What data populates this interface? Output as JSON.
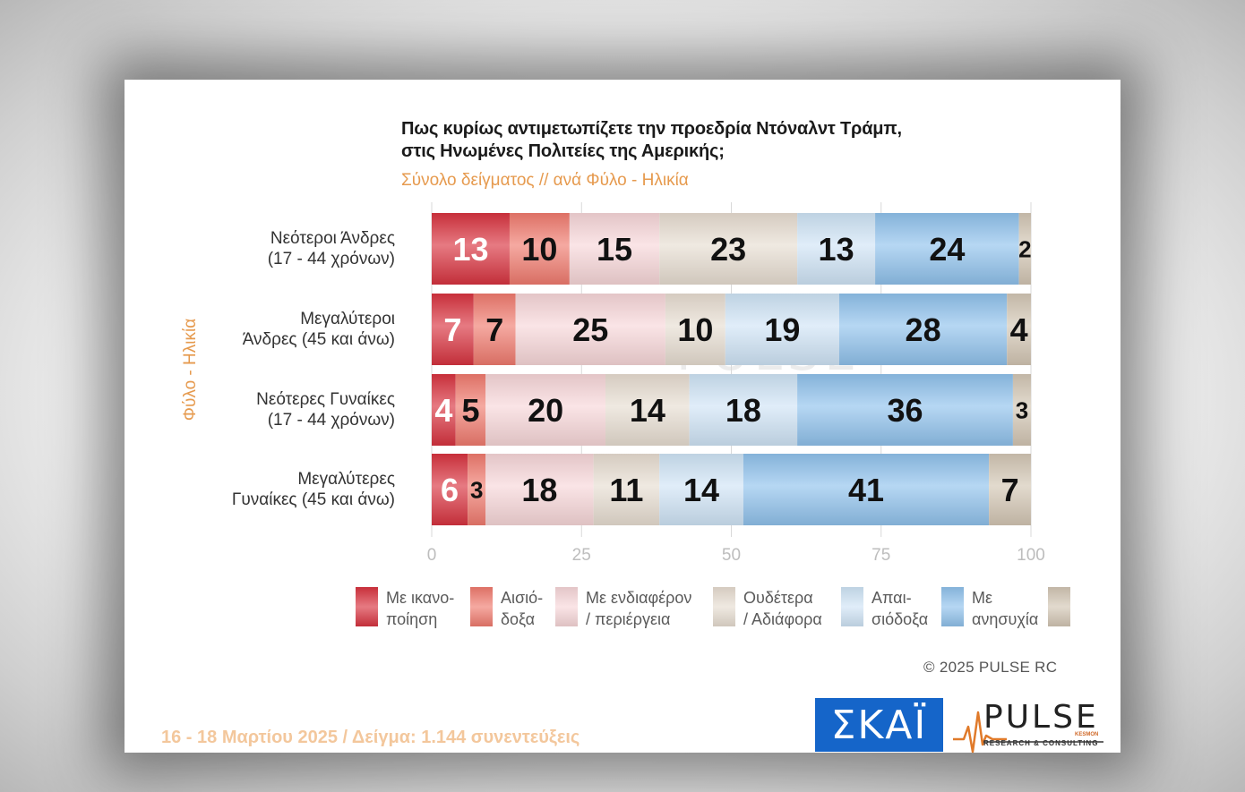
{
  "chart_data": {
    "type": "bar",
    "orientation": "horizontal",
    "stacked": true,
    "title_lines": [
      "Πως κυρίως αντιμετωπίζετε την προεδρία Ντόναλντ Τράμπ,",
      "στις Ηνωμένες Πολιτείες της Αμερικής;"
    ],
    "subtitle": "Σύνολο δείγματος // ανά Φύλο - Ηλικία",
    "ylabel": "Φύλο - Ηλικία",
    "xlim": [
      0,
      100
    ],
    "xticks": [
      "0",
      "25",
      "50",
      "75",
      "100"
    ],
    "categories": [
      [
        "Νεότεροι Άνδρες",
        "(17 - 44 χρόνων)"
      ],
      [
        "Μεγαλύτεροι",
        "Άνδρες (45 και άνω)"
      ],
      [
        "Νεότερες Γυναίκες",
        "(17 - 44 χρόνων)"
      ],
      [
        "Μεγαλύτερες",
        "Γυναίκες (45 και άνω)"
      ]
    ],
    "series": [
      {
        "name": "Με ικανο-\nποίηση",
        "color": "#d8333f",
        "values": [
          13,
          7,
          4,
          6
        ]
      },
      {
        "name": "Αισιό-\nδοξα",
        "color": "#f07a6e",
        "values": [
          10,
          7,
          5,
          3
        ]
      },
      {
        "name": "Με ενδιαφέρον\n/ περιέργεια",
        "color": "#f7d6d8",
        "values": [
          15,
          25,
          20,
          18
        ]
      },
      {
        "name": "Ουδέτερα\n/ Αδιάφορα",
        "color": "#e7ddd1",
        "values": [
          23,
          10,
          14,
          11
        ]
      },
      {
        "name": "Απαι-\nσιόδοξα",
        "color": "#cfe4f6",
        "values": [
          13,
          19,
          18,
          14
        ]
      },
      {
        "name": "Με\nανησυχία",
        "color": "#8fc1ec",
        "values": [
          24,
          28,
          36,
          41
        ]
      },
      {
        "name": "",
        "color": "#d3c6b4",
        "values": [
          2,
          4,
          3,
          7
        ]
      }
    ]
  },
  "copyright": "©  2025  PULSE RC",
  "footnote": "16 - 18 Μαρτίου 2025  /  Δείγμα:  1.144 συνεντεύξεις",
  "logos": {
    "skai": "ΣΚΑΪ",
    "pulse": "PULSE",
    "pulse_tagline": "RESEARCH & CONSULTING",
    "pulse_kesmon": "KESMON"
  }
}
